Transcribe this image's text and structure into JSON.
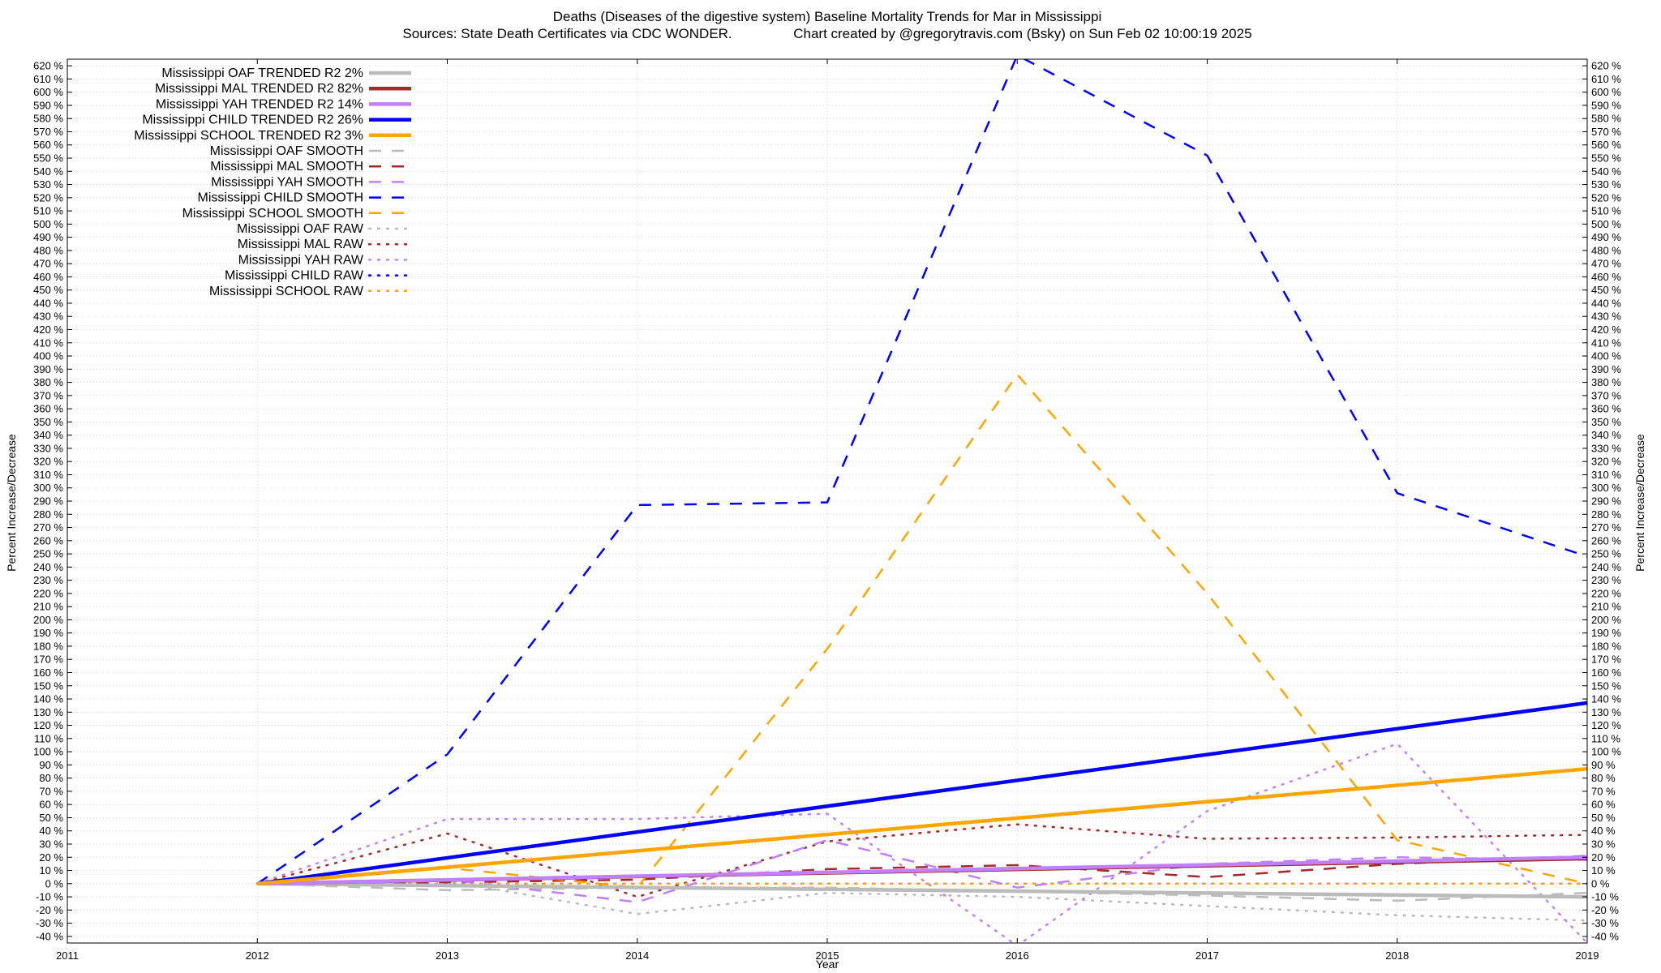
{
  "chart_data": {
    "type": "line",
    "title": "Deaths (Diseases of the digestive system)  Baseline Mortality Trends for Mar in Mississippi",
    "subtitle": "Sources: State Death Certificates via CDC WONDER.                Chart created by @gregorytravis.com (Bsky) on Sun Feb 02 10:00:19 2025",
    "xlabel": "Year",
    "ylabel": "Percent Increase/Decrease",
    "xlim": [
      2011,
      2019
    ],
    "ylim": [
      -45,
      625
    ],
    "x_ticks": [
      "2011",
      "2012",
      "2013",
      "2014",
      "2015",
      "2016",
      "2017",
      "2018",
      "2019"
    ],
    "y_tick_step": 10,
    "y_tick_suffix": " %",
    "grid": true,
    "legend_position": "top-left",
    "colors": {
      "oaf": "#bbbbbb",
      "mal": "#a52a2a",
      "yah": "#c080ff",
      "child": "#0000ff",
      "school": "#ffa500"
    },
    "series": [
      {
        "name": "Mississippi OAF TRENDED R2  2%",
        "key": "oaf",
        "style": "trend",
        "x": [
          2012,
          2019
        ],
        "values": [
          0,
          -10
        ]
      },
      {
        "name": "Mississippi MAL TRENDED R2  82%",
        "key": "mal",
        "style": "trend",
        "x": [
          2012,
          2019
        ],
        "values": [
          0,
          19
        ]
      },
      {
        "name": "Mississippi YAH TRENDED R2  14%",
        "key": "yah",
        "style": "trend",
        "x": [
          2012,
          2019
        ],
        "values": [
          0,
          20
        ]
      },
      {
        "name": "Mississippi CHILD TRENDED R2  26%",
        "key": "child",
        "style": "trend",
        "x": [
          2012,
          2019
        ],
        "values": [
          0,
          137
        ]
      },
      {
        "name": "Mississippi SCHOOL TRENDED R2   3%",
        "key": "school",
        "style": "trend",
        "x": [
          2012,
          2019
        ],
        "values": [
          0,
          87
        ]
      },
      {
        "name": "Mississippi OAF SMOOTH",
        "key": "oaf",
        "style": "smooth",
        "x": [
          2012,
          2013,
          2014,
          2015,
          2016,
          2017,
          2018,
          2019
        ],
        "values": [
          0,
          -5,
          -3,
          -3,
          -6,
          -9,
          -13,
          -7
        ]
      },
      {
        "name": "Mississippi MAL SMOOTH",
        "key": "mal",
        "style": "smooth",
        "x": [
          2012,
          2013,
          2014,
          2015,
          2016,
          2017,
          2018,
          2019
        ],
        "values": [
          0,
          1,
          3,
          11,
          14,
          5,
          15,
          21
        ]
      },
      {
        "name": "Mississippi YAH SMOOTH",
        "key": "yah",
        "style": "smooth",
        "x": [
          2012,
          2013,
          2014,
          2015,
          2016,
          2017,
          2018,
          2019
        ],
        "values": [
          0,
          3,
          -14,
          33,
          -3,
          15,
          20,
          18
        ]
      },
      {
        "name": "Mississippi CHILD SMOOTH",
        "key": "child",
        "style": "smooth",
        "x": [
          2012,
          2013,
          2014,
          2015,
          2016,
          2017,
          2018,
          2019
        ],
        "values": [
          0,
          98,
          287,
          289,
          628,
          552,
          296,
          248
        ]
      },
      {
        "name": "Mississippi SCHOOL SMOOTH",
        "key": "school",
        "style": "smooth",
        "x": [
          2012,
          2013,
          2014,
          2015,
          2016,
          2017,
          2018,
          2019
        ],
        "values": [
          0,
          12,
          -3,
          178,
          386,
          220,
          33,
          0
        ]
      },
      {
        "name": "Mississippi OAF RAW",
        "key": "oaf",
        "style": "raw",
        "x": [
          2012,
          2013,
          2014,
          2015,
          2016,
          2017,
          2018,
          2019
        ],
        "values": [
          0,
          2,
          -23,
          -7,
          -10,
          -17,
          -24,
          -28
        ]
      },
      {
        "name": "Mississippi MAL RAW",
        "key": "mal",
        "style": "raw",
        "x": [
          2012,
          2013,
          2014,
          2015,
          2016,
          2017,
          2018,
          2019
        ],
        "values": [
          0,
          38,
          -10,
          32,
          45,
          34,
          35,
          37
        ]
      },
      {
        "name": "Mississippi YAH RAW",
        "key": "yah",
        "style": "raw",
        "x": [
          2012,
          2013,
          2014,
          2015,
          2016,
          2017,
          2018,
          2019
        ],
        "values": [
          0,
          49,
          49,
          53,
          -47,
          55,
          106,
          -45
        ]
      },
      {
        "name": "Mississippi CHILD RAW",
        "key": "child",
        "style": "raw",
        "x": [
          2012,
          2013,
          2014,
          2015,
          2016,
          2017,
          2018,
          2019
        ],
        "values": [
          0,
          0,
          0,
          0,
          0,
          0,
          0,
          0
        ]
      },
      {
        "name": "Mississippi SCHOOL RAW",
        "key": "school",
        "style": "raw",
        "x": [
          2012,
          2013,
          2014,
          2015,
          2016,
          2017,
          2018,
          2019
        ],
        "values": [
          0,
          0,
          0,
          0,
          0,
          0,
          0,
          0
        ]
      }
    ]
  }
}
